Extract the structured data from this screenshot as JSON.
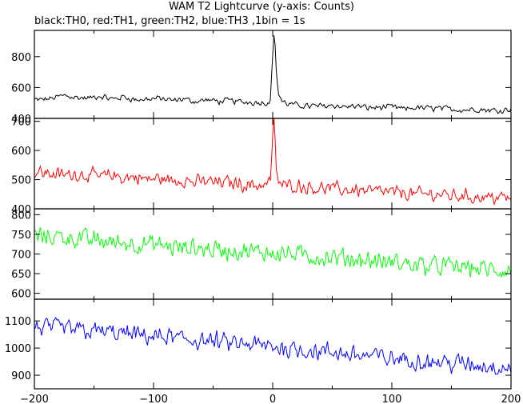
{
  "title": "WAM T2 Lightcurve (y-axis: Counts)",
  "subtitle": "black:TH0, red:TH1, green:TH2, blue:TH3 ,1bin = 1s",
  "colors": {
    "TH0": "#000000",
    "TH1": "#ff0000",
    "TH2": "#00ff00",
    "TH3": "#0000ff"
  },
  "chart_data": [
    {
      "type": "line",
      "series_color": "#000000",
      "xlim": [
        -200,
        200
      ],
      "ylim": [
        400,
        970
      ],
      "yticks": [
        400,
        600,
        800
      ],
      "ytick_labels": [
        "400",
        "600",
        "800"
      ],
      "x": [
        -195,
        -185,
        -175,
        -165,
        -155,
        -145,
        -135,
        -125,
        -115,
        -105,
        -95,
        -85,
        -75,
        -65,
        -55,
        -45,
        -35,
        -25,
        -15,
        -5,
        -2,
        0,
        1,
        2,
        3,
        5,
        8,
        12,
        20,
        30,
        40,
        50,
        60,
        70,
        80,
        90,
        100,
        110,
        120,
        130,
        140,
        150,
        160,
        170,
        180,
        190,
        198
      ],
      "y": [
        520,
        530,
        550,
        535,
        530,
        545,
        525,
        540,
        520,
        525,
        530,
        515,
        525,
        510,
        520,
        510,
        515,
        505,
        505,
        500,
        520,
        800,
        950,
        870,
        700,
        560,
        510,
        495,
        485,
        480,
        480,
        485,
        475,
        480,
        470,
        470,
        475,
        460,
        470,
        465,
        465,
        460,
        455,
        460,
        455,
        450,
        460
      ],
      "noise": 25
    },
    {
      "type": "line",
      "series_color": "#ff0000",
      "xlim": [
        -200,
        200
      ],
      "ylim": [
        400,
        710
      ],
      "yticks": [
        400,
        500,
        600,
        700
      ],
      "ytick_labels": [
        "400",
        "500",
        "600",
        "700"
      ],
      "x": [
        -195,
        -185,
        -175,
        -165,
        -155,
        -145,
        -135,
        -125,
        -115,
        -105,
        -95,
        -85,
        -75,
        -65,
        -55,
        -45,
        -35,
        -25,
        -15,
        -5,
        -2,
        0,
        1,
        2,
        3,
        5,
        10,
        20,
        30,
        40,
        50,
        60,
        70,
        80,
        90,
        100,
        110,
        120,
        130,
        140,
        150,
        160,
        170,
        180,
        190,
        198
      ],
      "y": [
        525,
        520,
        515,
        520,
        515,
        510,
        515,
        505,
        510,
        500,
        505,
        495,
        500,
        490,
        495,
        490,
        490,
        485,
        480,
        485,
        500,
        640,
        700,
        620,
        540,
        490,
        480,
        480,
        475,
        470,
        470,
        465,
        465,
        460,
        460,
        455,
        455,
        450,
        450,
        450,
        445,
        445,
        440,
        440,
        440,
        435
      ],
      "noise": 30
    },
    {
      "type": "line",
      "series_color": "#00ff00",
      "xlim": [
        -200,
        200
      ],
      "ylim": [
        585,
        815
      ],
      "yticks": [
        600,
        650,
        700,
        750,
        800
      ],
      "ytick_labels": [
        "600",
        "650",
        "700",
        "750",
        "800"
      ],
      "x": [
        -195,
        -180,
        -165,
        -150,
        -135,
        -120,
        -105,
        -90,
        -75,
        -60,
        -45,
        -30,
        -15,
        0,
        15,
        30,
        45,
        60,
        75,
        90,
        105,
        120,
        135,
        150,
        165,
        180,
        198
      ],
      "y": [
        745,
        745,
        740,
        735,
        730,
        728,
        725,
        720,
        715,
        715,
        710,
        708,
        705,
        705,
        700,
        695,
        690,
        690,
        685,
        680,
        678,
        672,
        670,
        668,
        665,
        660,
        655
      ],
      "noise": 32
    },
    {
      "type": "line",
      "series_color": "#0000ff",
      "xlim": [
        -200,
        200
      ],
      "ylim": [
        850,
        1180
      ],
      "yticks": [
        900,
        1000,
        1100
      ],
      "ytick_labels": [
        "900",
        "1000",
        "1100"
      ],
      "xticks": [
        -200,
        -100,
        0,
        100,
        200
      ],
      "xtick_labels": [
        "−200",
        "−100",
        "0",
        "100",
        "200"
      ],
      "x": [
        -195,
        -180,
        -165,
        -150,
        -135,
        -120,
        -105,
        -90,
        -75,
        -60,
        -45,
        -30,
        -15,
        0,
        15,
        30,
        45,
        60,
        75,
        90,
        105,
        120,
        135,
        150,
        165,
        180,
        198
      ],
      "y": [
        1075,
        1072,
        1068,
        1062,
        1058,
        1050,
        1045,
        1040,
        1032,
        1028,
        1020,
        1015,
        1010,
        1005,
        998,
        992,
        985,
        980,
        972,
        968,
        960,
        955,
        950,
        945,
        940,
        935,
        930
      ],
      "noise": 45
    }
  ]
}
